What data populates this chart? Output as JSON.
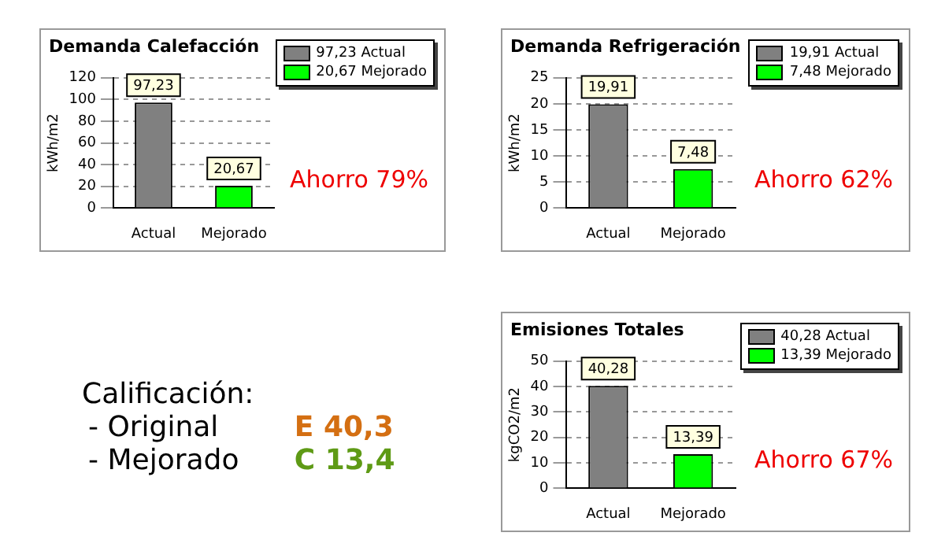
{
  "chart_data": [
    {
      "type": "bar",
      "title": "Demanda Calefacción",
      "ylabel": "kWh/m2",
      "categories": [
        "Actual",
        "Mejorado"
      ],
      "series": [
        {
          "name": "97,23 Actual",
          "color": "#808080",
          "values": [
            97.23,
            null
          ],
          "value_labels": [
            "97,23",
            null
          ]
        },
        {
          "name": "20,67 Mejorado",
          "color": "#00ff00",
          "values": [
            null,
            20.67
          ],
          "value_labels": [
            null,
            "20,67"
          ]
        }
      ],
      "ylim": [
        0,
        120
      ],
      "yticks": [
        0,
        20,
        40,
        60,
        80,
        100,
        120
      ],
      "grid": "y",
      "legend": "top right",
      "annotations": [
        "Ahorro 79%"
      ]
    },
    {
      "type": "bar",
      "title": "Demanda Refrigeración",
      "ylabel": "kWh/m2",
      "categories": [
        "Actual",
        "Mejorado"
      ],
      "series": [
        {
          "name": "19,91 Actual",
          "color": "#808080",
          "values": [
            19.91,
            null
          ],
          "value_labels": [
            "19,91",
            null
          ]
        },
        {
          "name": "7,48 Mejorado",
          "color": "#00ff00",
          "values": [
            null,
            7.48
          ],
          "value_labels": [
            null,
            "7,48"
          ]
        }
      ],
      "ylim": [
        0,
        25
      ],
      "yticks": [
        0,
        5,
        10,
        15,
        20,
        25
      ],
      "grid": "y",
      "legend": "top right",
      "annotations": [
        "Ahorro 62%"
      ]
    },
    {
      "type": "other",
      "title": "Calificación:",
      "annotations": [
        "- Original",
        "E 40,3",
        "- Mejorado",
        "C 13,4"
      ]
    },
    {
      "type": "bar",
      "title": "Emisiones Totales",
      "ylabel": "kgCO2/m2",
      "categories": [
        "Actual",
        "Mejorado"
      ],
      "series": [
        {
          "name": "40,28 Actual",
          "color": "#808080",
          "values": [
            40.28,
            null
          ],
          "value_labels": [
            "40,28",
            null
          ]
        },
        {
          "name": "13,39 Mejorado",
          "color": "#00ff00",
          "values": [
            null,
            13.39
          ],
          "value_labels": [
            null,
            "13,39"
          ]
        }
      ],
      "ylim": [
        0,
        50
      ],
      "yticks": [
        0,
        10,
        20,
        30,
        40,
        50
      ],
      "grid": "y",
      "legend": "top right",
      "annotations": [
        "Ahorro 67%"
      ]
    }
  ]
}
